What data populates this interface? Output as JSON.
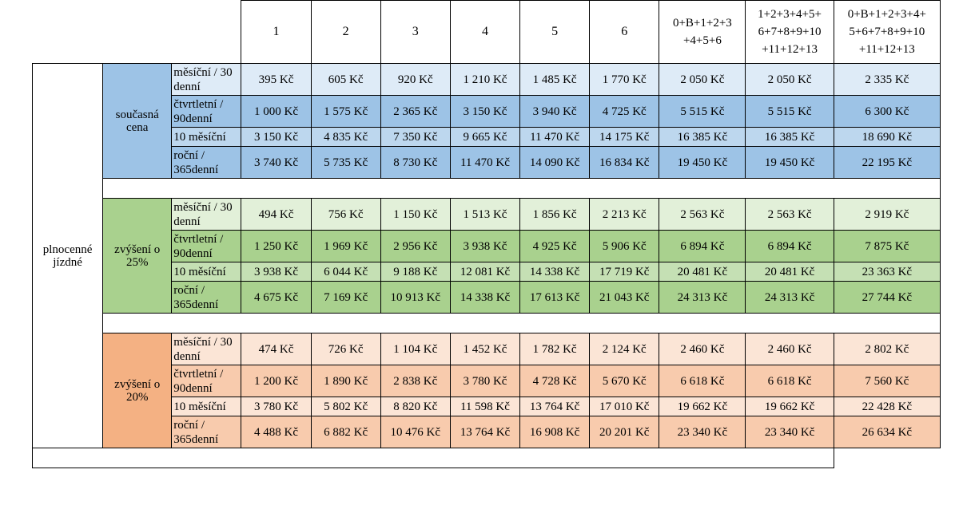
{
  "header": {
    "zones": [
      "1",
      "2",
      "3",
      "4",
      "5",
      "6",
      "0+B+1+2+3 +4+5+6",
      "1+2+3+4+5+ 6+7+8+9+10 +11+12+13",
      "0+B+1+2+3+4+ 5+6+7+8+9+10 +11+12+13"
    ]
  },
  "category": "plnocenné jízdné",
  "periods": [
    "měsíční / 30 denní",
    "čtvrtletní / 90denní",
    "10 měsíční",
    "roční / 365denní"
  ],
  "groups": [
    {
      "label": "současná cena",
      "rows": [
        [
          "395 Kč",
          "605 Kč",
          "920 Kč",
          "1 210 Kč",
          "1 485 Kč",
          "1 770 Kč",
          "2 050 Kč",
          "2 050 Kč",
          "2 335 Kč"
        ],
        [
          "1 000 Kč",
          "1 575 Kč",
          "2 365 Kč",
          "3 150 Kč",
          "3 940 Kč",
          "4 725 Kč",
          "5 515 Kč",
          "5 515 Kč",
          "6 300 Kč"
        ],
        [
          "3 150 Kč",
          "4 835 Kč",
          "7 350 Kč",
          "9 665 Kč",
          "11 470 Kč",
          "14 175 Kč",
          "16 385 Kč",
          "16 385 Kč",
          "18 690 Kč"
        ],
        [
          "3 740 Kč",
          "5 735 Kč",
          "8 730 Kč",
          "11 470 Kč",
          "14 090 Kč",
          "16 834 Kč",
          "19 450 Kč",
          "19 450 Kč",
          "22 195 Kč"
        ]
      ]
    },
    {
      "label": "zvýšení o 25%",
      "rows": [
        [
          "494 Kč",
          "756 Kč",
          "1 150 Kč",
          "1 513 Kč",
          "1 856 Kč",
          "2 213 Kč",
          "2 563 Kč",
          "2 563 Kč",
          "2 919 Kč"
        ],
        [
          "1 250 Kč",
          "1 969 Kč",
          "2 956 Kč",
          "3 938 Kč",
          "4 925 Kč",
          "5 906 Kč",
          "6 894 Kč",
          "6 894 Kč",
          "7 875 Kč"
        ],
        [
          "3 938 Kč",
          "6 044 Kč",
          "9 188 Kč",
          "12 081 Kč",
          "14 338 Kč",
          "17 719 Kč",
          "20 481 Kč",
          "20 481 Kč",
          "23 363 Kč"
        ],
        [
          "4 675 Kč",
          "7 169 Kč",
          "10 913 Kč",
          "14 338 Kč",
          "17 613 Kč",
          "21 043 Kč",
          "24 313 Kč",
          "24 313 Kč",
          "27 744 Kč"
        ]
      ]
    },
    {
      "label": "zvýšení o 20%",
      "rows": [
        [
          "474 Kč",
          "726 Kč",
          "1 104 Kč",
          "1 452 Kč",
          "1 782 Kč",
          "2 124 Kč",
          "2 460 Kč",
          "2 460 Kč",
          "2 802 Kč"
        ],
        [
          "1 200 Kč",
          "1 890 Kč",
          "2 838 Kč",
          "3 780 Kč",
          "4 728 Kč",
          "5 670 Kč",
          "6 618 Kč",
          "6 618 Kč",
          "7 560 Kč"
        ],
        [
          "3 780 Kč",
          "5 802 Kč",
          "8 820 Kč",
          "11 598 Kč",
          "13 764 Kč",
          "17 010 Kč",
          "19 662 Kč",
          "19 662 Kč",
          "22 428 Kč"
        ],
        [
          "4 488 Kč",
          "6 882 Kč",
          "10 476 Kč",
          "13 764 Kč",
          "16 908 Kč",
          "20 201 Kč",
          "23 340 Kč",
          "23 340 Kč",
          "26 634 Kč"
        ]
      ]
    }
  ],
  "colors": {
    "blue": "#9dc3e6",
    "green": "#a9d18e",
    "orange": "#f4b183"
  }
}
